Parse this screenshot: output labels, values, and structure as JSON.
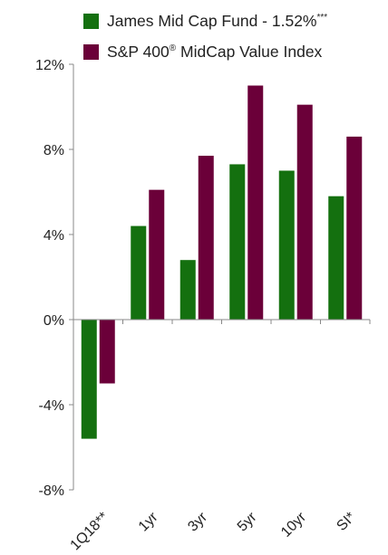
{
  "chart_data": {
    "type": "bar",
    "categories": [
      "1Q18**",
      "1yr",
      "3yr",
      "5yr",
      "10yr",
      "SI*"
    ],
    "series": [
      {
        "name": "James Mid Cap Fund - 1.52%***",
        "color": "#14700f",
        "values": [
          -5.6,
          4.4,
          2.8,
          7.3,
          7.0,
          5.8
        ]
      },
      {
        "name": "S&P 400® MidCap Value Index",
        "color": "#6b0039",
        "values": [
          -3.0,
          6.1,
          7.7,
          11.0,
          10.1,
          8.6
        ]
      }
    ],
    "ylim": [
      -8,
      12
    ],
    "yticks": [
      -8,
      -4,
      0,
      4,
      8,
      12
    ],
    "ytick_suffix": "%",
    "legend_position": "top",
    "grid": false
  },
  "legend": {
    "items": [
      {
        "label": "James Mid Cap Fund - 1.52%",
        "superscript": "***",
        "color": "#14700f"
      },
      {
        "label": "S&P 400",
        "superscript": "®",
        "label_after": " MidCap Value Index",
        "color": "#6b0039"
      }
    ]
  }
}
